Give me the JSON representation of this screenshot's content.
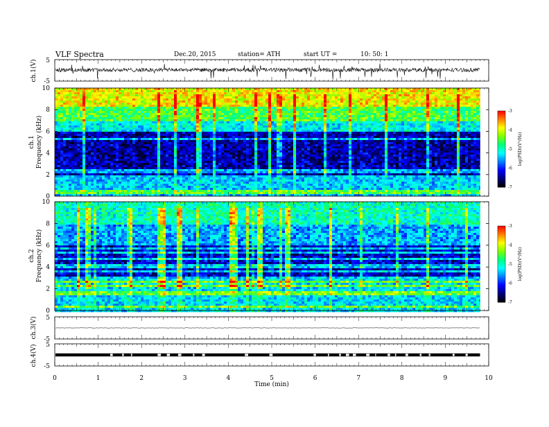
{
  "header": {
    "title": "VLF  Spectra",
    "date": "Dec.20, 2015",
    "station": "station= ATH",
    "start_ut_label": "start  UT  =",
    "start_ut_value": "10: 50: 1"
  },
  "chart_data": [
    {
      "type": "line",
      "panel": "ch1-waveform",
      "ylabel": "ch.1(V)",
      "ylim": [
        -5,
        5
      ],
      "yticks": [
        "5",
        "-5"
      ],
      "baseline": 0.2
    },
    {
      "type": "heatmap",
      "panel": "ch1-spectrogram",
      "ylabel": [
        "ch.1",
        "Frequency  (kHz)"
      ],
      "ylim": [
        0,
        10
      ],
      "yticks": [
        "0",
        "2",
        "4",
        "6",
        "8",
        "10"
      ],
      "colorbar": {
        "label": "log(PSD)(V²/Hz)",
        "ticks": [
          "-3",
          "-4",
          "-5",
          "-6",
          "-7"
        ],
        "range": [
          -7,
          -3
        ]
      },
      "bands_khz": [
        {
          "from": 0,
          "to": 2,
          "logPSD": -5.4
        },
        {
          "from": 2,
          "to": 6,
          "logPSD": -6.4
        },
        {
          "from": 6,
          "to": 7,
          "logPSD": -5.2
        },
        {
          "from": 7,
          "to": 8.3,
          "logPSD": -4.6
        },
        {
          "from": 8.3,
          "to": 10,
          "logPSD": -3.9
        }
      ]
    },
    {
      "type": "heatmap",
      "panel": "ch2-spectrogram",
      "ylabel": [
        "ch.2",
        "Frequency  (kHz)"
      ],
      "ylim": [
        0,
        10
      ],
      "yticks": [
        "0",
        "2",
        "4",
        "6",
        "8",
        "10"
      ],
      "colorbar": {
        "label": "log(PSD)(V²/Hz)",
        "ticks": [
          "-3",
          "-4",
          "-5",
          "-6",
          "-7"
        ],
        "range": [
          -7,
          -3
        ]
      },
      "bands_khz": [
        {
          "from": 0,
          "to": 3,
          "logPSD": -5.3
        },
        {
          "from": 3,
          "to": 6,
          "logPSD": -6.3
        },
        {
          "from": 6,
          "to": 8,
          "logPSD": -5.5
        },
        {
          "from": 8,
          "to": 10,
          "logPSD": -5.0
        }
      ]
    },
    {
      "type": "line",
      "panel": "ch3-waveform",
      "ylabel": "ch.3(V)",
      "ylim": [
        -5,
        5
      ],
      "yticks": [
        "5",
        "-5"
      ],
      "baseline": 0
    },
    {
      "type": "line",
      "panel": "ch4-waveform",
      "ylabel": "ch.4(V)",
      "ylim": [
        -5,
        5
      ],
      "yticks": [
        "5",
        "-5"
      ],
      "baseline": 0
    }
  ],
  "time_axis": {
    "xlabel": "Time  (min)",
    "xlim": [
      0,
      10
    ],
    "xticks": [
      "0",
      "1",
      "2",
      "3",
      "4",
      "5",
      "6",
      "7",
      "8",
      "9",
      "10"
    ],
    "data_end_min": 9.8
  },
  "colors": {
    "colormap": [
      "#000000",
      "#00007a",
      "#0000ff",
      "#007fff",
      "#00ffff",
      "#00ff7f",
      "#7fff00",
      "#ffff00",
      "#ff7f00",
      "#ff0000",
      "#ffffff"
    ],
    "trace": "#000000",
    "background": "#ffffff"
  }
}
